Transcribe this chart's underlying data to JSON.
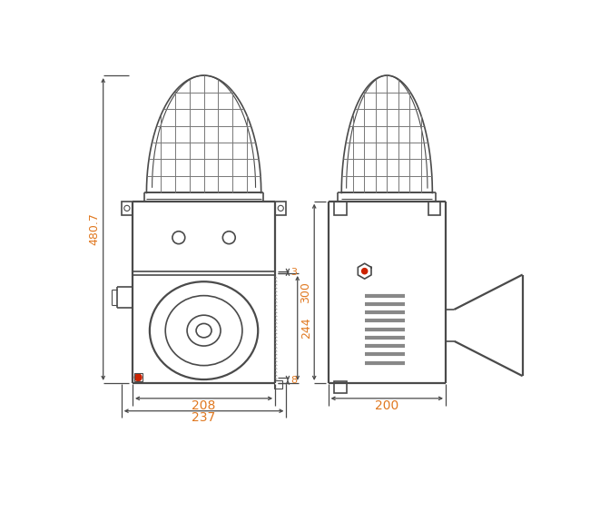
{
  "bg_color": "#ffffff",
  "line_color": "#4a4a4a",
  "dim_color": "#e07820",
  "figsize": [
    6.5,
    5.64
  ],
  "dpi": 100,
  "annotations": {
    "480_7": "480.7",
    "244": "244",
    "3": "3",
    "8": "8",
    "208": "208",
    "237": "237",
    "300": "300",
    "200": "200"
  }
}
